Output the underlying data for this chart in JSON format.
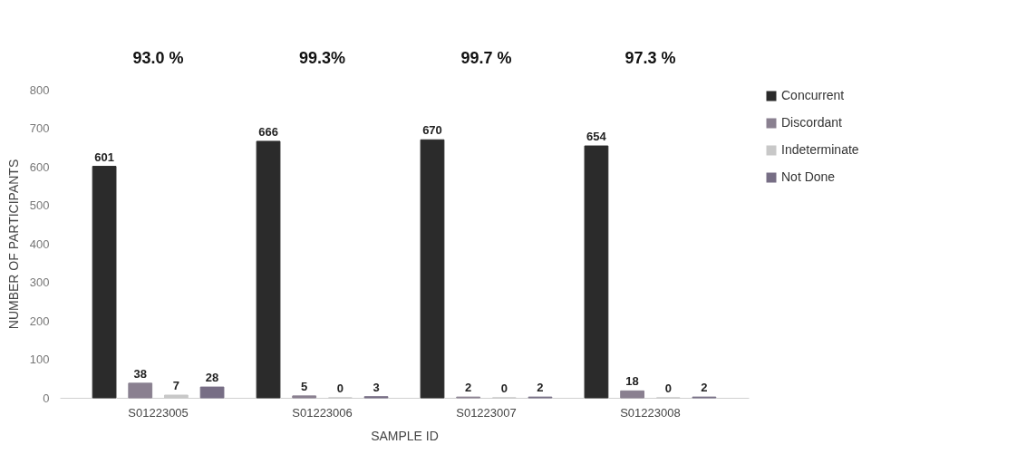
{
  "chart_data": {
    "type": "bar",
    "xlabel": "SAMPLE ID",
    "ylabel": "NUMBER OF PARTICIPANTS",
    "categories": [
      "S01223005",
      "S01223006",
      "S01223007",
      "S01223008"
    ],
    "series": [
      {
        "name": "Concurrent",
        "color": "#2b2b2b",
        "values": [
          601,
          666,
          670,
          654
        ]
      },
      {
        "name": "Discordant",
        "color": "#8a8090",
        "values": [
          38,
          5,
          2,
          18
        ]
      },
      {
        "name": "Indeterminate",
        "color": "#c8c8c8",
        "values": [
          7,
          0,
          0,
          0
        ]
      },
      {
        "name": "Not Done",
        "color": "#776e85",
        "values": [
          28,
          3,
          2,
          2
        ]
      }
    ],
    "ylim": [
      0,
      800
    ],
    "yticks": [
      0,
      100,
      200,
      300,
      400,
      500,
      600,
      700,
      800
    ],
    "data_labels": true,
    "legend": "right",
    "annotations": [
      "93.0 %",
      "99.3%",
      "99.7 %",
      "97.3 %"
    ]
  }
}
